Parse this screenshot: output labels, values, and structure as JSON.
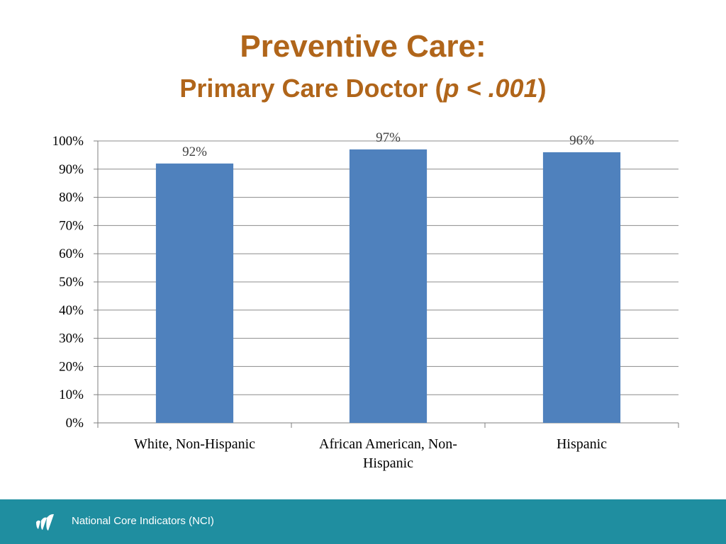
{
  "title": {
    "line1": "Preventive Care:",
    "line2_prefix": "Primary Care Doctor (",
    "line2_italic": "p < .001",
    "line2_suffix": ")"
  },
  "chart_data": {
    "type": "bar",
    "categories": [
      "White, Non-Hispanic",
      "African American, Non-Hispanic",
      "Hispanic"
    ],
    "category_lines": [
      [
        "White, Non-Hispanic"
      ],
      [
        "African American, Non-",
        "Hispanic"
      ],
      [
        "Hispanic"
      ]
    ],
    "values": [
      92,
      97,
      96
    ],
    "data_labels": [
      "92%",
      "97%",
      "96%"
    ],
    "ylim": [
      0,
      100
    ],
    "yticks": [
      0,
      10,
      20,
      30,
      40,
      50,
      60,
      70,
      80,
      90,
      100
    ],
    "ytick_labels": [
      "0%",
      "10%",
      "20%",
      "30%",
      "40%",
      "50%",
      "60%",
      "70%",
      "80%",
      "90%",
      "100%"
    ],
    "grid": true,
    "legend": "none",
    "bar_color": "#4f81bd",
    "title": "",
    "xlabel": "",
    "ylabel": ""
  },
  "footer": {
    "text": "National Core Indicators (NCI)",
    "logo_icon": "nci-logo-icon"
  },
  "colors": {
    "title": "#b0651a",
    "footer_bg": "#1f8ea0",
    "grid": "#8c8c8c",
    "bar": "#4f81bd"
  }
}
